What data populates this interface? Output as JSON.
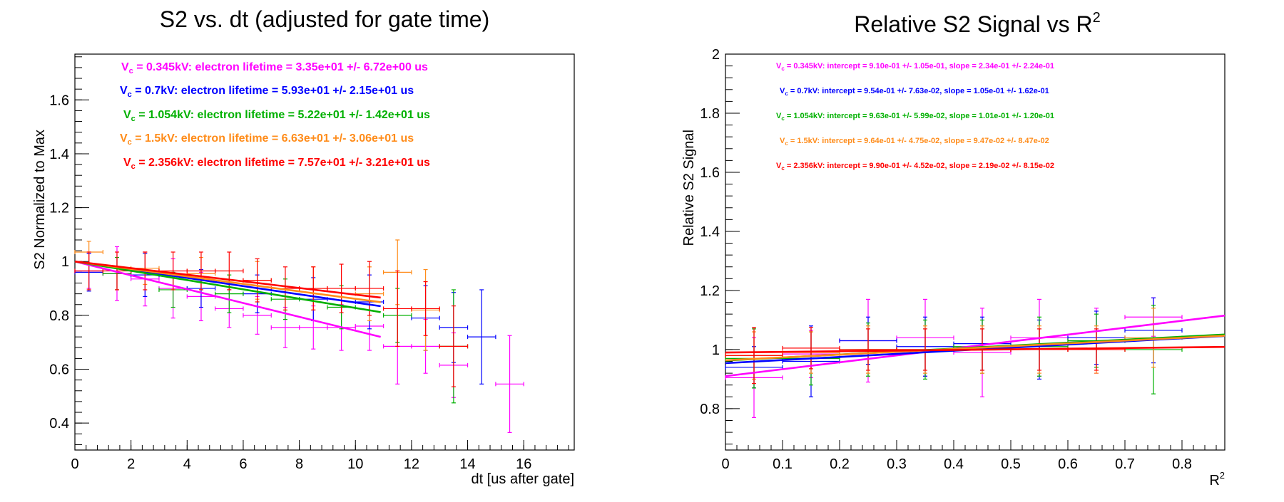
{
  "chart_data": [
    {
      "type": "scatter",
      "title": "S2 vs. dt (adjusted for gate time)",
      "xlabel": "dt [us after gate]",
      "ylabel": "S2 Normalized to Max",
      "xlim": [
        0,
        17.8
      ],
      "ylim": [
        0.3,
        1.77
      ],
      "xticks": [
        0,
        2,
        4,
        6,
        8,
        10,
        12,
        14,
        16
      ],
      "yticks": [
        0.4,
        0.6,
        0.8,
        1,
        1.2,
        1.4,
        1.6
      ],
      "xtick_labels": [
        "0",
        "2",
        "4",
        "6",
        "8",
        "10",
        "12",
        "14",
        "16"
      ],
      "ytick_labels": [
        "0.4",
        "0.6",
        "0.8",
        "1",
        "1.2",
        "1.4",
        "1.6"
      ],
      "grid": false,
      "annotations": [
        {
          "prefix": "V",
          "sub": "c",
          "text": " = 0.345kV: electron lifetime = 3.35e+01 +/- 6.72e+00 us",
          "color": "#ff00ff"
        },
        {
          "prefix": "V",
          "sub": "c",
          "text": " = 0.7kV: electron lifetime = 5.93e+01 +/- 2.15e+01 us",
          "color": "#0000ff"
        },
        {
          "prefix": "V",
          "sub": "c",
          "text": " = 1.054kV: electron lifetime = 5.22e+01 +/- 1.42e+01 us",
          "color": "#00b000"
        },
        {
          "prefix": "V",
          "sub": "c",
          "text": " = 1.5kV: electron lifetime = 6.63e+01 +/- 3.06e+01 us",
          "color": "#ff8c1a"
        },
        {
          "prefix": "V",
          "sub": "c",
          "text": " = 2.356kV: electron lifetime = 7.57e+01 +/- 3.21e+01 us",
          "color": "#ff0000"
        }
      ],
      "series": [
        {
          "color": "#ff00ff",
          "points": [
            {
              "x": 0.5,
              "y": 0.965,
              "xerr": 0.5,
              "yerr": 0.065
            },
            {
              "x": 1.5,
              "y": 0.955,
              "xerr": 0.5,
              "yerr": 0.1
            },
            {
              "x": 2.5,
              "y": 0.935,
              "xerr": 0.5,
              "yerr": 0.1
            },
            {
              "x": 3.5,
              "y": 0.9,
              "xerr": 0.5,
              "yerr": 0.11
            },
            {
              "x": 4.5,
              "y": 0.87,
              "xerr": 0.5,
              "yerr": 0.09
            },
            {
              "x": 5.5,
              "y": 0.825,
              "xerr": 0.5,
              "yerr": 0.07
            },
            {
              "x": 6.5,
              "y": 0.8,
              "xerr": 0.5,
              "yerr": 0.07
            },
            {
              "x": 7.5,
              "y": 0.755,
              "xerr": 0.5,
              "yerr": 0.075
            },
            {
              "x": 8.5,
              "y": 0.755,
              "xerr": 0.5,
              "yerr": 0.08
            },
            {
              "x": 9.5,
              "y": 0.755,
              "xerr": 0.5,
              "yerr": 0.085
            },
            {
              "x": 10.5,
              "y": 0.76,
              "xerr": 0.5,
              "yerr": 0.09
            },
            {
              "x": 11.5,
              "y": 0.685,
              "xerr": 0.5,
              "yerr": 0.14
            },
            {
              "x": 12.5,
              "y": 0.685,
              "xerr": 0.5,
              "yerr": 0.1
            },
            {
              "x": 13.5,
              "y": 0.615,
              "xerr": 0.5,
              "yerr": 0.12
            },
            {
              "x": 15.5,
              "y": 0.545,
              "xerr": 0.5,
              "yerr": 0.18
            }
          ],
          "fit": {
            "x": [
              0,
              10.9
            ],
            "y": [
              1.0,
              0.72
            ]
          }
        },
        {
          "color": "#0000ff",
          "points": [
            {
              "x": 0.5,
              "y": 0.96,
              "xerr": 0.5,
              "yerr": 0.07
            },
            {
              "x": 2.5,
              "y": 0.95,
              "xerr": 0.5,
              "yerr": 0.08
            },
            {
              "x": 4.5,
              "y": 0.9,
              "xerr": 0.5,
              "yerr": 0.07
            },
            {
              "x": 6.5,
              "y": 0.88,
              "xerr": 0.5,
              "yerr": 0.07
            },
            {
              "x": 8.5,
              "y": 0.86,
              "xerr": 0.5,
              "yerr": 0.08
            },
            {
              "x": 10.5,
              "y": 0.85,
              "xerr": 0.5,
              "yerr": 0.1
            },
            {
              "x": 12.5,
              "y": 0.79,
              "xerr": 0.5,
              "yerr": 0.12
            },
            {
              "x": 13.5,
              "y": 0.755,
              "xerr": 0.5,
              "yerr": 0.13
            },
            {
              "x": 14.5,
              "y": 0.72,
              "xerr": 0.5,
              "yerr": 0.175
            }
          ],
          "fit": {
            "x": [
              0,
              10.9
            ],
            "y": [
              1.0,
              0.834
            ]
          }
        },
        {
          "color": "#00b000",
          "points": [
            {
              "x": 1.5,
              "y": 0.955,
              "xerr": 0.5,
              "yerr": 0.06
            },
            {
              "x": 3.5,
              "y": 0.895,
              "xerr": 0.5,
              "yerr": 0.065
            },
            {
              "x": 5.5,
              "y": 0.88,
              "xerr": 0.5,
              "yerr": 0.07
            },
            {
              "x": 7.5,
              "y": 0.86,
              "xerr": 0.5,
              "yerr": 0.075
            },
            {
              "x": 9.5,
              "y": 0.83,
              "xerr": 0.5,
              "yerr": 0.08
            },
            {
              "x": 11.5,
              "y": 0.8,
              "xerr": 0.5,
              "yerr": 0.1
            },
            {
              "x": 13.5,
              "y": 0.685,
              "xerr": 0.5,
              "yerr": 0.21
            }
          ],
          "fit": {
            "x": [
              0,
              10.9
            ],
            "y": [
              1.0,
              0.812
            ]
          }
        },
        {
          "color": "#ff8c1a",
          "points": [
            {
              "x": 0.5,
              "y": 1.035,
              "xerr": 0.5,
              "yerr": 0.04
            },
            {
              "x": 2.5,
              "y": 0.975,
              "xerr": 0.5,
              "yerr": 0.06
            },
            {
              "x": 4.5,
              "y": 0.955,
              "xerr": 0.5,
              "yerr": 0.06
            },
            {
              "x": 6.5,
              "y": 0.93,
              "xerr": 0.5,
              "yerr": 0.07
            },
            {
              "x": 8.5,
              "y": 0.9,
              "xerr": 0.5,
              "yerr": 0.08
            },
            {
              "x": 10.5,
              "y": 0.88,
              "xerr": 0.5,
              "yerr": 0.1
            },
            {
              "x": 11.5,
              "y": 0.96,
              "xerr": 0.5,
              "yerr": 0.12
            },
            {
              "x": 12.5,
              "y": 0.82,
              "xerr": 0.5,
              "yerr": 0.15
            }
          ],
          "fit": {
            "x": [
              0,
              10.9
            ],
            "y": [
              1.0,
              0.849
            ]
          }
        },
        {
          "color": "#ff0000",
          "points": [
            {
              "x": 0.5,
              "y": 0.965,
              "xerr": 0.5,
              "yerr": 0.07
            },
            {
              "x": 1.5,
              "y": 0.965,
              "xerr": 0.5,
              "yerr": 0.07
            },
            {
              "x": 2.5,
              "y": 0.965,
              "xerr": 0.5,
              "yerr": 0.07
            },
            {
              "x": 3.5,
              "y": 0.965,
              "xerr": 0.5,
              "yerr": 0.07
            },
            {
              "x": 4.5,
              "y": 0.965,
              "xerr": 0.5,
              "yerr": 0.07
            },
            {
              "x": 5.5,
              "y": 0.965,
              "xerr": 0.5,
              "yerr": 0.07
            },
            {
              "x": 6.5,
              "y": 0.93,
              "xerr": 0.5,
              "yerr": 0.08
            },
            {
              "x": 7.5,
              "y": 0.9,
              "xerr": 0.5,
              "yerr": 0.08
            },
            {
              "x": 8.5,
              "y": 0.9,
              "xerr": 0.5,
              "yerr": 0.08
            },
            {
              "x": 9.5,
              "y": 0.9,
              "xerr": 0.5,
              "yerr": 0.09
            },
            {
              "x": 10.5,
              "y": 0.9,
              "xerr": 0.5,
              "yerr": 0.1
            },
            {
              "x": 11.5,
              "y": 0.825,
              "xerr": 0.5,
              "yerr": 0.14
            },
            {
              "x": 12.5,
              "y": 0.825,
              "xerr": 0.5,
              "yerr": 0.1
            },
            {
              "x": 13.5,
              "y": 0.685,
              "xerr": 0.5,
              "yerr": 0.15
            }
          ],
          "fit": {
            "x": [
              0,
              10.9
            ],
            "y": [
              1.0,
              0.866
            ]
          }
        }
      ]
    },
    {
      "type": "scatter",
      "title": "Relative S2 Signal vs R",
      "title_sup": "2",
      "xlabel": "R",
      "xlabel_sup": "2",
      "ylabel": "Relative S2 Signal",
      "xlim": [
        0,
        0.875
      ],
      "ylim": [
        0.66,
        2.0
      ],
      "xticks": [
        0,
        0.1,
        0.2,
        0.3,
        0.4,
        0.5,
        0.6,
        0.7,
        0.8
      ],
      "yticks": [
        0.8,
        1,
        1.2,
        1.4,
        1.6,
        1.8,
        2
      ],
      "xtick_labels": [
        "0",
        "0.1",
        "0.2",
        "0.3",
        "0.4",
        "0.5",
        "0.6",
        "0.7",
        "0.8"
      ],
      "ytick_labels": [
        "0.8",
        "1",
        "1.2",
        "1.4",
        "1.6",
        "1.8",
        "2"
      ],
      "grid": false,
      "annotations": [
        {
          "prefix": "V",
          "sub": "c",
          "text": " = 0.345kV: intercept = 9.10e-01 +/- 1.05e-01, slope = 2.34e-01 +/- 2.24e-01",
          "color": "#ff00ff"
        },
        {
          "prefix": "V",
          "sub": "c",
          "text": " = 0.7kV: intercept = 9.54e-01 +/- 7.63e-02, slope = 1.05e-01 +/- 1.62e-01",
          "color": "#0000ff"
        },
        {
          "prefix": "V",
          "sub": "c",
          "text": " = 1.054kV: intercept = 9.63e-01 +/- 5.99e-02, slope = 1.01e-01 +/- 1.20e-01",
          "color": "#00b000"
        },
        {
          "prefix": "V",
          "sub": "c",
          "text": " = 1.5kV: intercept = 9.64e-01 +/- 4.75e-02, slope = 9.47e-02 +/- 8.47e-02",
          "color": "#ff8c1a"
        },
        {
          "prefix": "V",
          "sub": "c",
          "text": " = 2.356kV: intercept = 9.90e-01 +/- 4.52e-02, slope = 2.19e-02 +/- 8.15e-02",
          "color": "#ff0000"
        }
      ],
      "series": [
        {
          "color": "#ff00ff",
          "points": [
            {
              "x": 0.05,
              "y": 0.905,
              "xerr": 0.05,
              "yerr": 0.135
            },
            {
              "x": 0.15,
              "y": 0.985,
              "xerr": 0.05,
              "yerr": 0.08
            },
            {
              "x": 0.25,
              "y": 1.03,
              "xerr": 0.05,
              "yerr": 0.14
            },
            {
              "x": 0.35,
              "y": 1.04,
              "xerr": 0.05,
              "yerr": 0.13
            },
            {
              "x": 0.45,
              "y": 0.99,
              "xerr": 0.05,
              "yerr": 0.15
            },
            {
              "x": 0.55,
              "y": 1.04,
              "xerr": 0.05,
              "yerr": 0.13
            },
            {
              "x": 0.65,
              "y": 1.03,
              "xerr": 0.05,
              "yerr": 0.11
            },
            {
              "x": 0.75,
              "y": 1.11,
              "xerr": 0.05,
              "yerr": 0.065
            }
          ],
          "fit": {
            "x": [
              0,
              0.875
            ],
            "y": [
              0.91,
              1.115
            ]
          }
        },
        {
          "color": "#0000ff",
          "points": [
            {
              "x": 0.05,
              "y": 0.94,
              "xerr": 0.05,
              "yerr": 0.07
            },
            {
              "x": 0.15,
              "y": 0.96,
              "xerr": 0.05,
              "yerr": 0.12
            },
            {
              "x": 0.25,
              "y": 1.03,
              "xerr": 0.05,
              "yerr": 0.08
            },
            {
              "x": 0.35,
              "y": 1.01,
              "xerr": 0.05,
              "yerr": 0.1
            },
            {
              "x": 0.45,
              "y": 1.02,
              "xerr": 0.05,
              "yerr": 0.09
            },
            {
              "x": 0.55,
              "y": 1.0,
              "xerr": 0.05,
              "yerr": 0.1
            },
            {
              "x": 0.65,
              "y": 1.04,
              "xerr": 0.05,
              "yerr": 0.09
            },
            {
              "x": 0.75,
              "y": 1.065,
              "xerr": 0.05,
              "yerr": 0.11
            }
          ],
          "fit": {
            "x": [
              0,
              0.875
            ],
            "y": [
              0.954,
              1.046
            ]
          }
        },
        {
          "color": "#00b000",
          "points": [
            {
              "x": 0.05,
              "y": 0.97,
              "xerr": 0.05,
              "yerr": 0.1
            },
            {
              "x": 0.15,
              "y": 0.97,
              "xerr": 0.05,
              "yerr": 0.09
            },
            {
              "x": 0.25,
              "y": 1.0,
              "xerr": 0.05,
              "yerr": 0.09
            },
            {
              "x": 0.35,
              "y": 1.0,
              "xerr": 0.05,
              "yerr": 0.1
            },
            {
              "x": 0.45,
              "y": 1.01,
              "xerr": 0.05,
              "yerr": 0.09
            },
            {
              "x": 0.55,
              "y": 1.01,
              "xerr": 0.05,
              "yerr": 0.1
            },
            {
              "x": 0.65,
              "y": 1.03,
              "xerr": 0.05,
              "yerr": 0.09
            },
            {
              "x": 0.75,
              "y": 1.0,
              "xerr": 0.05,
              "yerr": 0.15
            }
          ],
          "fit": {
            "x": [
              0,
              0.875
            ],
            "y": [
              0.963,
              1.051
            ]
          }
        },
        {
          "color": "#ff8c1a",
          "points": [
            {
              "x": 0.05,
              "y": 0.98,
              "xerr": 0.05,
              "yerr": 0.08
            },
            {
              "x": 0.15,
              "y": 0.99,
              "xerr": 0.05,
              "yerr": 0.07
            },
            {
              "x": 0.25,
              "y": 1.0,
              "xerr": 0.05,
              "yerr": 0.08
            },
            {
              "x": 0.35,
              "y": 1.0,
              "xerr": 0.05,
              "yerr": 0.08
            },
            {
              "x": 0.45,
              "y": 1.0,
              "xerr": 0.05,
              "yerr": 0.08
            },
            {
              "x": 0.55,
              "y": 1.0,
              "xerr": 0.05,
              "yerr": 0.08
            },
            {
              "x": 0.65,
              "y": 1.0,
              "xerr": 0.05,
              "yerr": 0.08
            },
            {
              "x": 0.75,
              "y": 1.04,
              "xerr": 0.05,
              "yerr": 0.1
            }
          ],
          "fit": {
            "x": [
              0,
              0.875
            ],
            "y": [
              0.964,
              1.047
            ]
          }
        },
        {
          "color": "#ff0000",
          "points": [
            {
              "x": 0.05,
              "y": 0.98,
              "xerr": 0.05,
              "yerr": 0.095
            },
            {
              "x": 0.15,
              "y": 1.005,
              "xerr": 0.05,
              "yerr": 0.07
            },
            {
              "x": 0.25,
              "y": 1.0,
              "xerr": 0.05,
              "yerr": 0.07
            },
            {
              "x": 0.35,
              "y": 1.0,
              "xerr": 0.05,
              "yerr": 0.07
            },
            {
              "x": 0.45,
              "y": 1.0,
              "xerr": 0.05,
              "yerr": 0.07
            },
            {
              "x": 0.55,
              "y": 1.0,
              "xerr": 0.05,
              "yerr": 0.07
            },
            {
              "x": 0.65,
              "y": 1.0,
              "xerr": 0.05,
              "yerr": 0.07
            }
          ],
          "fit": {
            "x": [
              0,
              0.875
            ],
            "y": [
              0.99,
              1.009
            ]
          }
        }
      ]
    }
  ]
}
